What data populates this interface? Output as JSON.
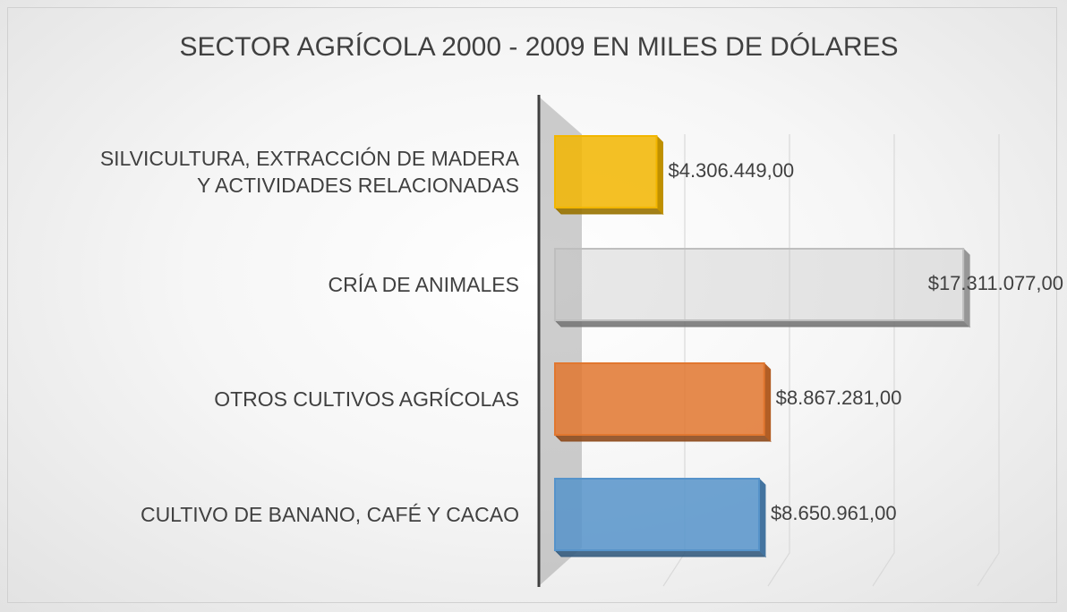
{
  "chart_data": {
    "type": "bar3d_horizontal",
    "title": "SECTOR AGRÍCOLA 2000 - 2009 EN MILES DE DÓLARES",
    "categories": [
      "SILVICULTURA, EXTRACCIÓN DE MADERA\nY ACTIVIDADES RELACIONADAS",
      "CRÍA DE ANIMALES",
      "OTROS CULTIVOS AGRÍCOLAS",
      "CULTIVO DE BANANO, CAFÉ Y CACAO"
    ],
    "values": [
      4306449,
      17311077,
      8867281,
      8650961
    ],
    "value_labels": [
      "$4.306.449,00",
      "$17.311.077,00",
      "$8.867.281,00",
      "$8.650.961,00"
    ],
    "colors": [
      "#ffc000",
      "#c8c8c8",
      "#ed7d31",
      "#5b9bd5"
    ],
    "xlim": [
      0,
      20000000
    ],
    "xticks": [
      0,
      5000000,
      10000000,
      15000000,
      20000000
    ],
    "grid": true
  }
}
